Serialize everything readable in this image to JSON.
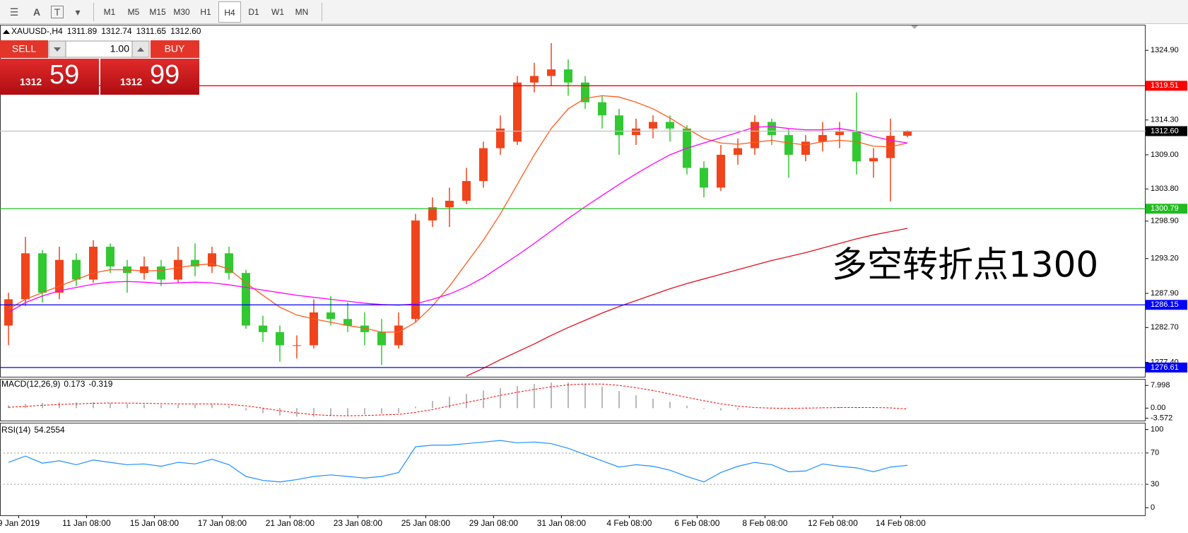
{
  "toolbar": {
    "timeframes": [
      "M1",
      "M5",
      "M15",
      "M30",
      "H1",
      "H4",
      "D1",
      "W1",
      "MN"
    ],
    "active_index": 5
  },
  "trade_panel": {
    "sell": "SELL",
    "buy": "BUY",
    "lots": "1.00",
    "bid_big": "1312",
    "bid_small": "59",
    "ask_big": "1312",
    "ask_small": "99"
  },
  "chart_data": {
    "type": "candlestick",
    "symbol": "XAUUSD-,H4",
    "ohlc_text": [
      "1311.89",
      "1312.74",
      "1311.65",
      "1312.60"
    ],
    "annotation": "多空转折点1300",
    "annotation_color": "#ff1a1a",
    "up_color": "#f0441c",
    "down_color": "#32c832",
    "open": [
      1283,
      1287,
      1294,
      1288,
      1293,
      1290,
      1295,
      1292,
      1291,
      1292,
      1290,
      1293,
      1292,
      1294,
      1291,
      1283,
      1282,
      1280,
      1280,
      1285,
      1284,
      1283,
      1282,
      1280,
      1284,
      1299,
      1301,
      1302,
      1305,
      1310,
      1311,
      1320,
      1321,
      1322,
      1320,
      1317,
      1315,
      1312,
      1313,
      1314,
      1313,
      1307,
      1304,
      1309,
      1310,
      1314,
      1312,
      1309,
      1311,
      1312,
      1312.5,
      1308,
      1308.5,
      1311.89
    ],
    "high": [
      1288,
      1296.5,
      1294.5,
      1295,
      1294,
      1296,
      1295.5,
      1293,
      1293.5,
      1293,
      1295,
      1295.5,
      1295,
      1295,
      1291.5,
      1284.5,
      1283,
      1281.5,
      1287,
      1287.5,
      1286.5,
      1285,
      1284,
      1285,
      1300,
      1302.5,
      1304,
      1307,
      1311,
      1315,
      1321,
      1323,
      1326,
      1323.5,
      1321,
      1318,
      1316,
      1314.5,
      1315,
      1315,
      1313.5,
      1308,
      1310.5,
      1311.5,
      1315,
      1314.5,
      1313,
      1312,
      1314,
      1314,
      1318.5,
      1310,
      1314.5,
      1312.74
    ],
    "low": [
      1280,
      1286,
      1286.5,
      1287,
      1289,
      1289.5,
      1291,
      1288,
      1290,
      1289,
      1289.5,
      1290.5,
      1291,
      1290,
      1282.5,
      1280.5,
      1277.5,
      1278,
      1279.5,
      1283,
      1282,
      1280,
      1277,
      1279.5,
      1283.5,
      1298,
      1298,
      1301.5,
      1304,
      1309,
      1310.5,
      1318.5,
      1319.5,
      1318,
      1316,
      1313,
      1309,
      1310.5,
      1311.5,
      1311,
      1306,
      1302.5,
      1303.5,
      1307.5,
      1309,
      1310.5,
      1305.5,
      1308,
      1309.5,
      1310,
      1306,
      1305.5,
      1301.9,
      1311.65
    ],
    "close": [
      1287,
      1294,
      1288,
      1293,
      1290,
      1295,
      1292,
      1291,
      1292,
      1290,
      1293,
      1292,
      1294,
      1291,
      1283,
      1282,
      1280,
      1280,
      1285,
      1284,
      1283,
      1282,
      1280,
      1283,
      1299,
      1301,
      1302,
      1305,
      1310,
      1313,
      1320,
      1321,
      1322,
      1320,
      1317,
      1315,
      1312,
      1313,
      1314,
      1313,
      1307,
      1304,
      1309,
      1310,
      1314,
      1312,
      1309,
      1311,
      1312,
      1312.5,
      1308,
      1308.5,
      1311.89,
      1312.6
    ],
    "moving_averages": [
      {
        "color": "#ff5a1e",
        "values": [
          1285.5,
          1287,
          1288,
          1289,
          1290,
          1291,
          1291.5,
          1291.5,
          1291.3,
          1291.4,
          1291.8,
          1292.2,
          1292.4,
          1291.6,
          1289.5,
          1287.6,
          1285.8,
          1284.6,
          1284,
          1283.5,
          1283,
          1282.6,
          1282,
          1282,
          1283.5,
          1286,
          1289,
          1292.5,
          1296,
          1300,
          1304.5,
          1309,
          1313,
          1316,
          1317.6,
          1318,
          1317.8,
          1317,
          1316,
          1314.6,
          1313,
          1311.5,
          1310.8,
          1310.6,
          1310.9,
          1311.2,
          1310.8,
          1310.5,
          1311,
          1311.2,
          1311,
          1310.3,
          1310.2,
          1310.8
        ]
      },
      {
        "color": "#ff00ff",
        "values": [
          1285,
          1286.5,
          1287.5,
          1288.3,
          1288.8,
          1289.3,
          1289.6,
          1289.7,
          1289.6,
          1289.4,
          1289.5,
          1289.6,
          1289.5,
          1289.2,
          1288.8,
          1288.4,
          1288,
          1287.6,
          1287.3,
          1287,
          1286.7,
          1286.4,
          1286.2,
          1286.1,
          1286.3,
          1287,
          1287.8,
          1288.9,
          1290.3,
          1292,
          1293.7,
          1295.5,
          1297.4,
          1299.3,
          1301.1,
          1302.8,
          1304.5,
          1306.1,
          1307.6,
          1309,
          1310,
          1310.8,
          1311.6,
          1312.4,
          1313.2,
          1313.3,
          1313,
          1312.8,
          1312.8,
          1313,
          1312.6,
          1311.8,
          1311.2,
          1310.8
        ]
      },
      {
        "color": "#e0101e",
        "values": [
          null,
          null,
          null,
          null,
          null,
          null,
          null,
          null,
          null,
          null,
          null,
          null,
          null,
          null,
          null,
          null,
          null,
          null,
          null,
          null,
          null,
          null,
          null,
          null,
          null,
          null,
          null,
          1275.3,
          1276.5,
          1277.8,
          1279,
          1280.2,
          1281.5,
          1282.7,
          1283.8,
          1284.9,
          1285.9,
          1286.8,
          1287.7,
          1288.6,
          1289.4,
          1290.1,
          1290.8,
          1291.5,
          1292.2,
          1292.9,
          1293.5,
          1294.1,
          1294.8,
          1295.5,
          1296.2,
          1296.8,
          1297.3,
          1297.8
        ]
      }
    ],
    "ylim": [
      1275.2,
      1328.8
    ],
    "yticks": [
      {
        "value": 1324.9,
        "label": "1324.90"
      },
      {
        "value": 1314.3,
        "label": "1314.30"
      },
      {
        "value": 1309,
        "label": "1309.00"
      },
      {
        "value": 1303.8,
        "label": "1303.80"
      },
      {
        "value": 1298.9,
        "label": "1298.90"
      },
      {
        "value": 1293.2,
        "label": "1293.20"
      },
      {
        "value": 1287.9,
        "label": "1287.90"
      },
      {
        "value": 1282.7,
        "label": "1282.70"
      },
      {
        "value": 1277.4,
        "label": "1277.40"
      }
    ],
    "levels": [
      {
        "value": 1319.51,
        "color": "#ff0000"
      },
      {
        "value": 1312.6,
        "label": "1312.60",
        "color": "#000000",
        "line_color": "#c0c0c0"
      },
      {
        "value": 1300.79,
        "color": "#22bb22"
      },
      {
        "value": 1286.15,
        "color": "#0000ff"
      },
      {
        "value": 1276.61,
        "color": "#0000ff"
      }
    ],
    "xticks": [
      {
        "value": 0.6,
        "label": "9 Jan 2019"
      },
      {
        "value": 4.6,
        "label": "11 Jan 08:00"
      },
      {
        "value": 8.6,
        "label": "15 Jan 08:00"
      },
      {
        "value": 12.6,
        "label": "17 Jan 08:00"
      },
      {
        "value": 16.6,
        "label": "21 Jan 08:00"
      },
      {
        "value": 20.6,
        "label": "23 Jan 08:00"
      },
      {
        "value": 24.6,
        "label": "25 Jan 08:00"
      },
      {
        "value": 28.6,
        "label": "29 Jan 08:00"
      },
      {
        "value": 32.6,
        "label": "31 Jan 08:00"
      },
      {
        "value": 36.6,
        "label": "4 Feb 08:00"
      },
      {
        "value": 40.6,
        "label": "6 Feb 08:00"
      },
      {
        "value": 44.6,
        "label": "8 Feb 08:00"
      },
      {
        "value": 48.6,
        "label": "12 Feb 08:00"
      },
      {
        "value": 52.6,
        "label": "14 Feb 08:00"
      }
    ],
    "macd": {
      "name": "MACD(12,26,9)",
      "main": 0.173,
      "signal": -0.319,
      "histogram": [
        1,
        1.5,
        1.8,
        2,
        2,
        2.1,
        1.8,
        1.5,
        1.3,
        1.2,
        1.2,
        1.4,
        1.5,
        0.8,
        -0.8,
        -1.8,
        -2.6,
        -3,
        -3,
        -2.8,
        -2.5,
        -2.2,
        -2,
        -1.7,
        0.5,
        2.5,
        4,
        5,
        6.2,
        7,
        7.8,
        8.5,
        9,
        9,
        8.5,
        7.5,
        6,
        4.5,
        3.3,
        2.2,
        0.8,
        -0.3,
        -0.8,
        -0.6,
        0,
        0.2,
        0.1,
        0.2,
        0.3,
        0.4,
        0.2,
        0.1,
        0.2,
        0.173
      ],
      "signal_line": [
        0.3,
        0.6,
        1,
        1.3,
        1.5,
        1.7,
        1.8,
        1.8,
        1.7,
        1.6,
        1.5,
        1.5,
        1.5,
        1.3,
        0.8,
        0,
        -0.9,
        -1.7,
        -2.3,
        -2.6,
        -2.7,
        -2.6,
        -2.4,
        -2.2,
        -1.5,
        -0.5,
        0.8,
        2,
        3.2,
        4.5,
        5.6,
        6.6,
        7.5,
        8.2,
        8.5,
        8.5,
        8,
        7.2,
        6.2,
        5,
        3.8,
        2.6,
        1.5,
        0.7,
        0.2,
        0,
        -0.1,
        0,
        0.1,
        0.2,
        0.2,
        0.2,
        0.1,
        -0.319
      ],
      "color": "#b8b8b8",
      "signal_color": "#ff0000",
      "ylim": [
        -4.4,
        10.3
      ],
      "yticks": [
        7.998,
        {
          "value": 0,
          "label": "0.00"
        },
        -3.572
      ]
    },
    "rsi": {
      "name": "RSI(14)",
      "value": 54.2554,
      "values": [
        58,
        66,
        57,
        60,
        55,
        61,
        58,
        55,
        56,
        53,
        58,
        56,
        62,
        55,
        40,
        35,
        33,
        36,
        40,
        42,
        40,
        38,
        40,
        45,
        78,
        80,
        80,
        82,
        84,
        86,
        83,
        84,
        82,
        76,
        68,
        60,
        52,
        55,
        53,
        48,
        40,
        33,
        45,
        53,
        58,
        55,
        46,
        47,
        56,
        53,
        51,
        46,
        52,
        54.2554
      ],
      "color": "#1e90ff",
      "ylim": [
        -9.7,
        108.7
      ],
      "yticks": [
        100,
        70,
        30,
        0
      ]
    }
  }
}
